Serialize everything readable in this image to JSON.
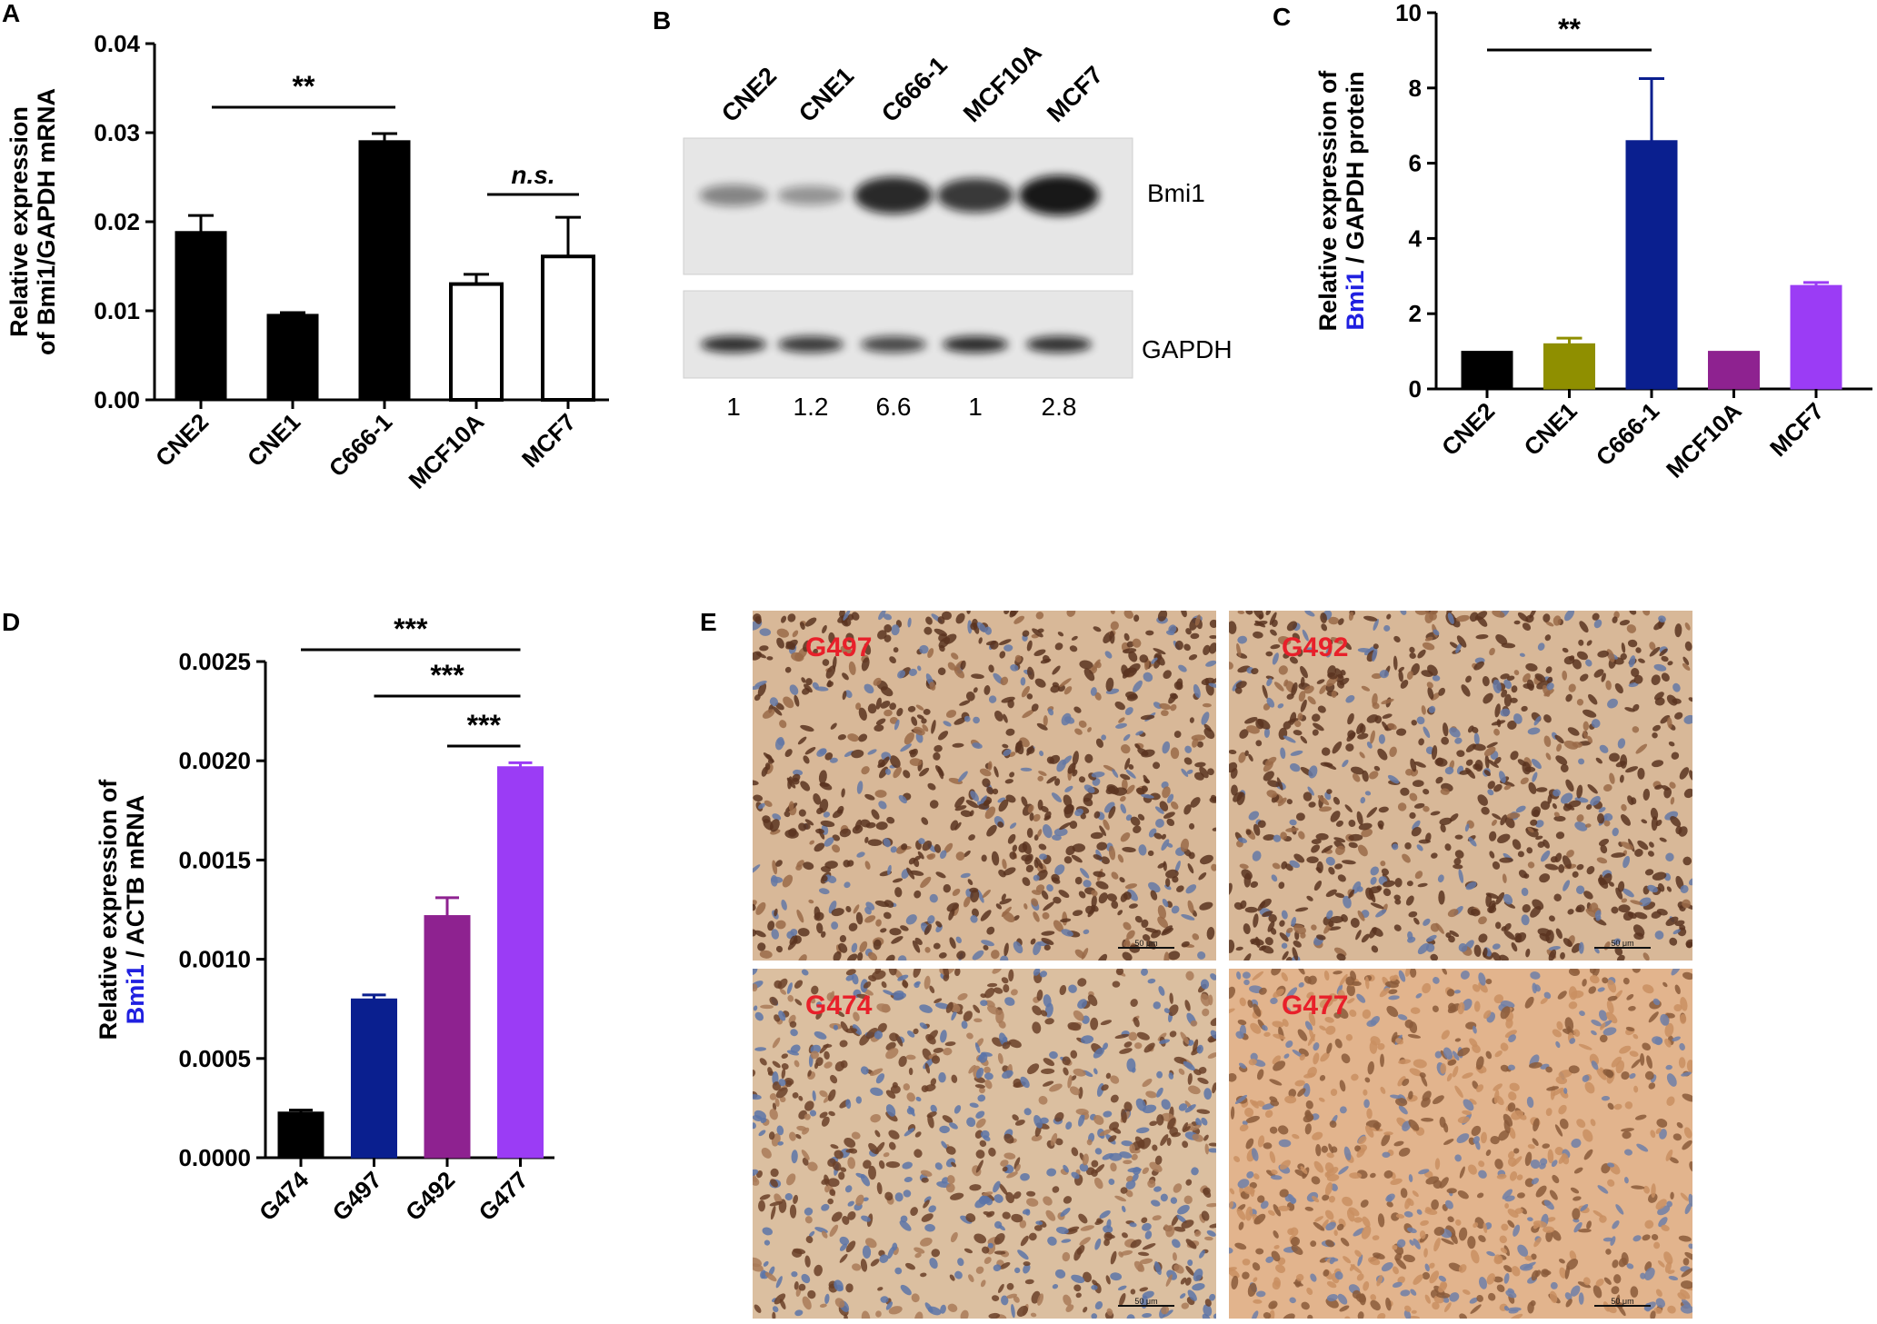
{
  "colors": {
    "black": "#000000",
    "olive": "#8f8f00",
    "navy": "#0a1f8f",
    "purple": "#8e2290",
    "violet": "#9b3cf5",
    "bmi1_blue": "#2020e0",
    "ihc_label_red": "#e8202a"
  },
  "panels": {
    "A": "A",
    "B": "B",
    "C": "C",
    "D": "D",
    "E": "E"
  },
  "chart_data": [
    {
      "panel": "A",
      "type": "bar",
      "ylabel_lines": [
        "Relative expression",
        "of Bmi1/GAPDH mRNA"
      ],
      "ylim": [
        0,
        0.04
      ],
      "yticks": [
        "0.00",
        "0.01",
        "0.02",
        "0.03",
        "0.04"
      ],
      "categories": [
        "CNE2",
        "CNE1",
        "C666-1",
        "MCF10A",
        "MCF7"
      ],
      "values": [
        0.0189,
        0.0096,
        0.0291,
        0.013,
        0.0161
      ],
      "errors": [
        0.0018,
        0.0002,
        0.0008,
        0.0011,
        0.0044
      ],
      "fills": [
        "#000000",
        "#000000",
        "#000000",
        "#ffffff",
        "#ffffff"
      ],
      "significance": [
        {
          "from": 0,
          "to": 2,
          "label": "**"
        },
        {
          "from": 3,
          "to": 4,
          "label": "n.s."
        }
      ]
    },
    {
      "panel": "B",
      "type": "table",
      "lanes": [
        "CNE2",
        "CNE1",
        "C666-1",
        "MCF10A",
        "MCF7"
      ],
      "bands": [
        "Bmi1",
        "GAPDH"
      ],
      "ratios": [
        "1",
        "1.2",
        "6.6",
        "1",
        "2.8"
      ],
      "bmi1_intensity": [
        0.28,
        0.18,
        0.88,
        0.78,
        1.0
      ],
      "gapdh_intensity": [
        0.82,
        0.72,
        0.6,
        0.85,
        0.8
      ]
    },
    {
      "panel": "C",
      "type": "bar",
      "ylabel_lines": [
        "Relative expression of",
        "/ GAPDH protein"
      ],
      "ylabel_highlight": "Bmi1",
      "ylim": [
        0,
        10
      ],
      "yticks": [
        "0",
        "2",
        "4",
        "6",
        "8",
        "10"
      ],
      "categories": [
        "CNE2",
        "CNE1",
        "C666-1",
        "MCF10A",
        "MCF7"
      ],
      "values": [
        1.0,
        1.2,
        6.6,
        1.0,
        2.75
      ],
      "errors": [
        0,
        0.15,
        1.65,
        0,
        0.08
      ],
      "fills": [
        "#000000",
        "#8f8f00",
        "#0a1f8f",
        "#8e2290",
        "#9b3cf5"
      ],
      "significance": [
        {
          "from": 0,
          "to": 2,
          "label": "**"
        }
      ]
    },
    {
      "panel": "D",
      "type": "bar",
      "ylabel_lines": [
        "Relative expression of",
        "/ ACTB mRNA"
      ],
      "ylabel_highlight": "Bmi1",
      "ylim": [
        0,
        0.0025
      ],
      "yticks": [
        "0.0000",
        "0.0005",
        "0.0010",
        "0.0015",
        "0.0020",
        "0.0025"
      ],
      "categories": [
        "G474",
        "G497",
        "G492",
        "G477"
      ],
      "values": [
        0.00023,
        0.0008,
        0.00122,
        0.00197
      ],
      "errors": [
        1e-05,
        2e-05,
        9e-05,
        2e-05
      ],
      "fills": [
        "#000000",
        "#0a1f8f",
        "#8e2290",
        "#9b3cf5"
      ],
      "significance": [
        {
          "from": 0,
          "to": 3,
          "label": "***"
        },
        {
          "from": 1,
          "to": 3,
          "label": "***"
        },
        {
          "from": 2,
          "to": 3,
          "label": "***"
        }
      ]
    }
  ],
  "panel_E": {
    "images": [
      {
        "label": "G497",
        "scale": "50 μm",
        "tone": "dark"
      },
      {
        "label": "G492",
        "scale": "50 μm",
        "tone": "dark"
      },
      {
        "label": "G474",
        "scale": "50 μm",
        "tone": "mixed"
      },
      {
        "label": "G477",
        "scale": "50 μm",
        "tone": "light"
      }
    ]
  }
}
